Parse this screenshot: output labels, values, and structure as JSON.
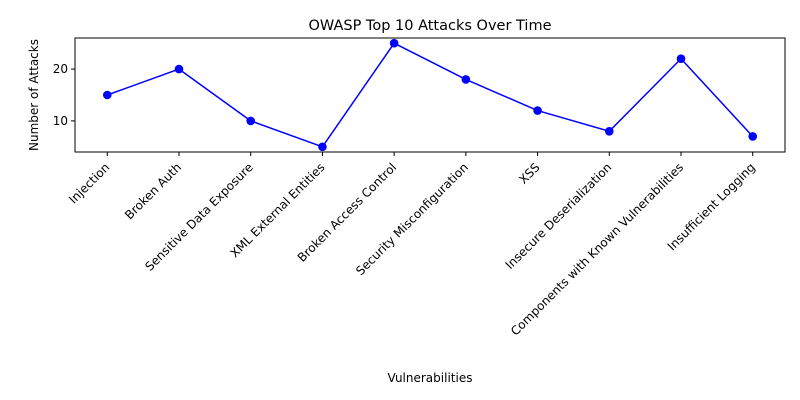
{
  "chart_data": {
    "type": "line",
    "title": "OWASP Top 10 Attacks Over Time",
    "xlabel": "Vulnerabilities",
    "ylabel": "Number of Attacks",
    "categories": [
      "Injection",
      "Broken Auth",
      "Sensitive Data Exposure",
      "XML External Entities",
      "Broken Access Control",
      "Security Misconfiguration",
      "XSS",
      "Insecure Deserialization",
      "Components with Known Vulnerabilities",
      "Insufficient Logging"
    ],
    "values": [
      15,
      20,
      10,
      5,
      25,
      18,
      12,
      8,
      22,
      7
    ],
    "ylim": [
      4,
      26
    ],
    "yticks": [
      10,
      20
    ],
    "grid": false,
    "legend": "none",
    "colors": {
      "line": "#0000ff",
      "marker": "#0000ff",
      "axes": "#000000"
    }
  }
}
